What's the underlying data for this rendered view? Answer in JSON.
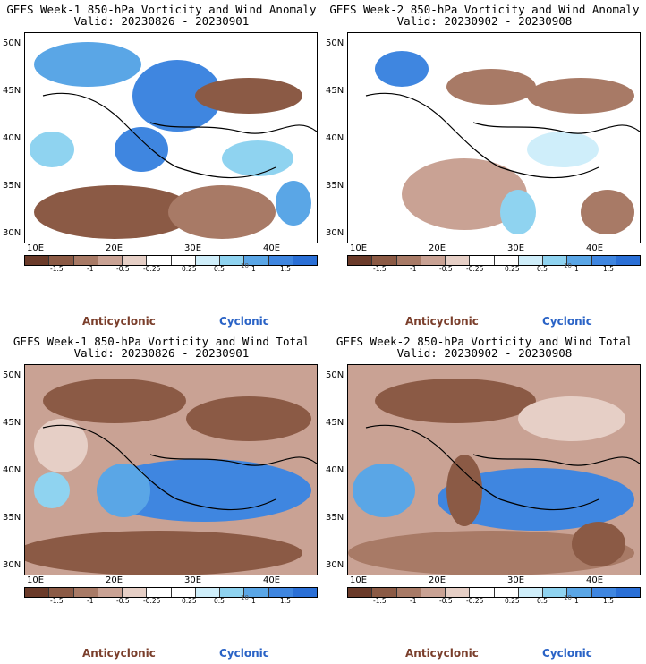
{
  "panels": [
    {
      "title": "GEFS Week-1 850-hPa Vorticity and Wind Anomaly",
      "valid": "Valid: 20230826 - 20230901"
    },
    {
      "title": "GEFS Week-2 850-hPa Vorticity and Wind Anomaly",
      "valid": "Valid: 20230902 - 20230908"
    },
    {
      "title": "GEFS Week-1 850-hPa Vorticity and Wind Total",
      "valid": "Valid: 20230826 - 20230901"
    },
    {
      "title": "GEFS Week-2 850-hPa Vorticity and Wind Total",
      "valid": "Valid: 20230902 - 20230908"
    }
  ],
  "lat_labels": [
    "50N",
    "45N",
    "40N",
    "35N",
    "30N"
  ],
  "lon_labels": [
    "10E",
    "20E",
    "30E",
    "40E"
  ],
  "colorbar": {
    "labels": [
      "-1.5",
      "-1",
      "-0.5",
      "-0.25",
      "0.25",
      "0.5",
      "1",
      "1.5"
    ],
    "unit": "10",
    "colors": [
      "#6b3b2a",
      "#8b5a45",
      "#a87a66",
      "#c9a294",
      "#e6cfc6",
      "#ffffff",
      "#ffffff",
      "#cfeefa",
      "#8fd3f0",
      "#5aa6e6",
      "#3f86e0",
      "#2a6fd6"
    ]
  },
  "legend": {
    "anticyclonic": "Anticyclonic",
    "cyclonic": "Cyclonic",
    "anticyclonic_color": "#7a3e2b",
    "cyclonic_color": "#2a63c6"
  }
}
